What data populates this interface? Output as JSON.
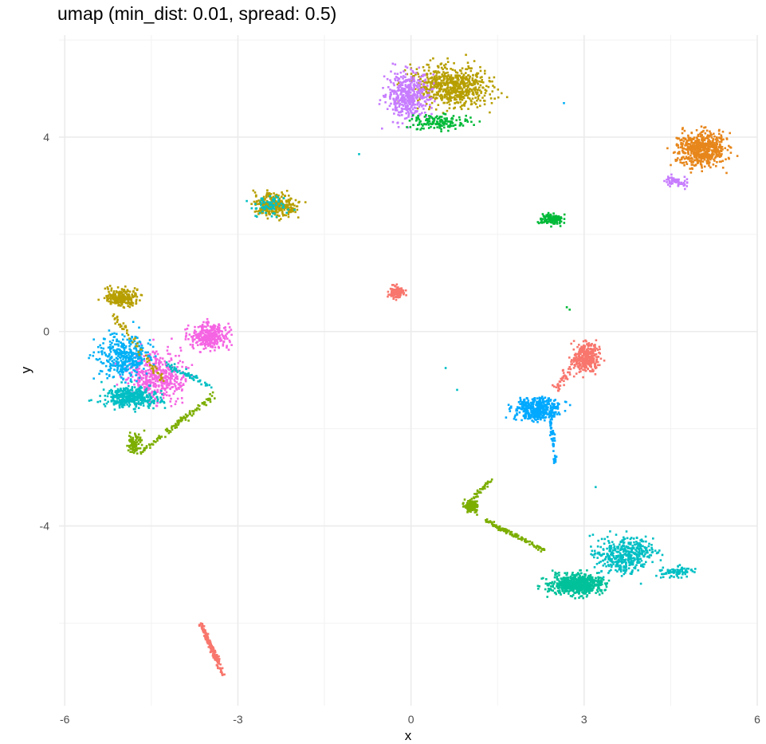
{
  "chart_data": {
    "type": "scatter",
    "title": "umap (min_dist: 0.01, spread: 0.5)",
    "xlabel": "x",
    "ylabel": "y",
    "xlim": [
      -6.1,
      6.0
    ],
    "ylim": [
      -7.7,
      6.1
    ],
    "x_ticks": [
      -6,
      -3,
      0,
      3,
      6
    ],
    "y_ticks": [
      -4,
      0,
      4
    ],
    "grid": true,
    "legend": "none",
    "clusters": [
      {
        "color": "#B79F00",
        "center": [
          0.7,
          5.05
        ],
        "spread": [
          0.85,
          0.5
        ],
        "n": 650
      },
      {
        "color": "#C77CFF",
        "center": [
          -0.05,
          4.85
        ],
        "spread": [
          0.45,
          0.55
        ],
        "n": 420
      },
      {
        "color": "#00BA38",
        "center": [
          0.5,
          4.3
        ],
        "spread": [
          0.6,
          0.2
        ],
        "n": 140
      },
      {
        "color": "#E7861B",
        "center": [
          5.05,
          3.75
        ],
        "spread": [
          0.5,
          0.4
        ],
        "n": 620
      },
      {
        "color": "#C77CFF",
        "center": [
          4.6,
          3.1
        ],
        "spread": [
          0.25,
          0.15
        ],
        "n": 60
      },
      {
        "color": "#B79F00",
        "center": [
          -2.35,
          2.6
        ],
        "spread": [
          0.45,
          0.3
        ],
        "n": 300
      },
      {
        "color": "#00BFC4",
        "center": [
          -2.4,
          2.6
        ],
        "spread": [
          0.4,
          0.25
        ],
        "n": 70
      },
      {
        "color": "#00BA38",
        "center": [
          2.45,
          2.3
        ],
        "spread": [
          0.25,
          0.12
        ],
        "n": 130
      },
      {
        "color": "#F8766D",
        "center": [
          -0.25,
          0.8
        ],
        "spread": [
          0.15,
          0.15
        ],
        "n": 120
      },
      {
        "color": "#B79F00",
        "center": [
          -5.0,
          0.7
        ],
        "spread": [
          0.35,
          0.2
        ],
        "n": 220
      },
      {
        "color": "#F564E3",
        "center": [
          -3.5,
          -0.1
        ],
        "spread": [
          0.4,
          0.3
        ],
        "n": 320
      },
      {
        "color": "#F564E3",
        "center": [
          -4.4,
          -0.9
        ],
        "spread": [
          0.6,
          0.6
        ],
        "n": 450
      },
      {
        "color": "#00B0F6",
        "center": [
          -5.0,
          -0.5
        ],
        "spread": [
          0.55,
          0.55
        ],
        "n": 380
      },
      {
        "color": "#00BFC4",
        "center": [
          -4.85,
          -1.35
        ],
        "spread": [
          0.55,
          0.25
        ],
        "n": 420
      },
      {
        "color": "#7CAE00",
        "center": [
          -4.8,
          -2.3
        ],
        "spread": [
          0.15,
          0.25
        ],
        "n": 90
      },
      {
        "color": "#F8766D",
        "center": [
          3.05,
          -0.55
        ],
        "spread": [
          0.25,
          0.4
        ],
        "n": 280
      },
      {
        "color": "#00A9FF",
        "center": [
          2.2,
          -1.6
        ],
        "spread": [
          0.45,
          0.25
        ],
        "n": 420
      },
      {
        "color": "#7CAE00",
        "center": [
          1.05,
          -3.6
        ],
        "spread": [
          0.15,
          0.15
        ],
        "n": 120
      },
      {
        "color": "#00C19A",
        "center": [
          2.85,
          -5.2
        ],
        "spread": [
          0.55,
          0.25
        ],
        "n": 620
      },
      {
        "color": "#00BFC4",
        "center": [
          3.7,
          -4.6
        ],
        "spread": [
          0.6,
          0.45
        ],
        "n": 420
      },
      {
        "color": "#00BFC4",
        "center": [
          4.6,
          -4.95
        ],
        "spread": [
          0.35,
          0.12
        ],
        "n": 80
      }
    ],
    "segments": [
      {
        "color": "#7CAE00",
        "from": [
          -4.7,
          -2.5
        ],
        "to": [
          -3.4,
          -1.3
        ],
        "n": 110,
        "width": 0.08
      },
      {
        "color": "#00A9FF",
        "from": [
          2.4,
          -1.6
        ],
        "to": [
          2.5,
          -2.7
        ],
        "n": 60,
        "width": 0.05
      },
      {
        "color": "#F8766D",
        "from": [
          2.5,
          -1.2
        ],
        "to": [
          3.1,
          -0.2
        ],
        "n": 80,
        "width": 0.12
      },
      {
        "color": "#7CAE00",
        "from": [
          1.3,
          -3.9
        ],
        "to": [
          2.3,
          -4.5
        ],
        "n": 120,
        "width": 0.06
      },
      {
        "color": "#7CAE00",
        "from": [
          1.0,
          -3.5
        ],
        "to": [
          1.4,
          -3.05
        ],
        "n": 40,
        "width": 0.05
      },
      {
        "color": "#F8766D",
        "from": [
          -3.65,
          -6.0
        ],
        "to": [
          -3.25,
          -7.05
        ],
        "n": 160,
        "width": 0.06
      },
      {
        "color": "#00BFC4",
        "from": [
          -4.2,
          -0.7
        ],
        "to": [
          -3.5,
          -1.1
        ],
        "n": 60,
        "width": 0.08
      },
      {
        "color": "#B79F00",
        "from": [
          -5.2,
          0.4
        ],
        "to": [
          -4.3,
          -1.0
        ],
        "n": 60,
        "width": 0.08
      }
    ],
    "points": [
      {
        "x": 2.65,
        "y": 4.7,
        "color": "#00B0F6"
      },
      {
        "x": -0.9,
        "y": 3.65,
        "color": "#00BFC4"
      },
      {
        "x": 2.7,
        "y": 0.5,
        "color": "#00BA38"
      },
      {
        "x": 2.75,
        "y": 0.45,
        "color": "#00BA38"
      },
      {
        "x": 0.6,
        "y": -0.75,
        "color": "#00BFC4"
      },
      {
        "x": 0.8,
        "y": -1.2,
        "color": "#00BFC4"
      },
      {
        "x": 3.2,
        "y": -3.2,
        "color": "#00BFC4"
      }
    ]
  }
}
